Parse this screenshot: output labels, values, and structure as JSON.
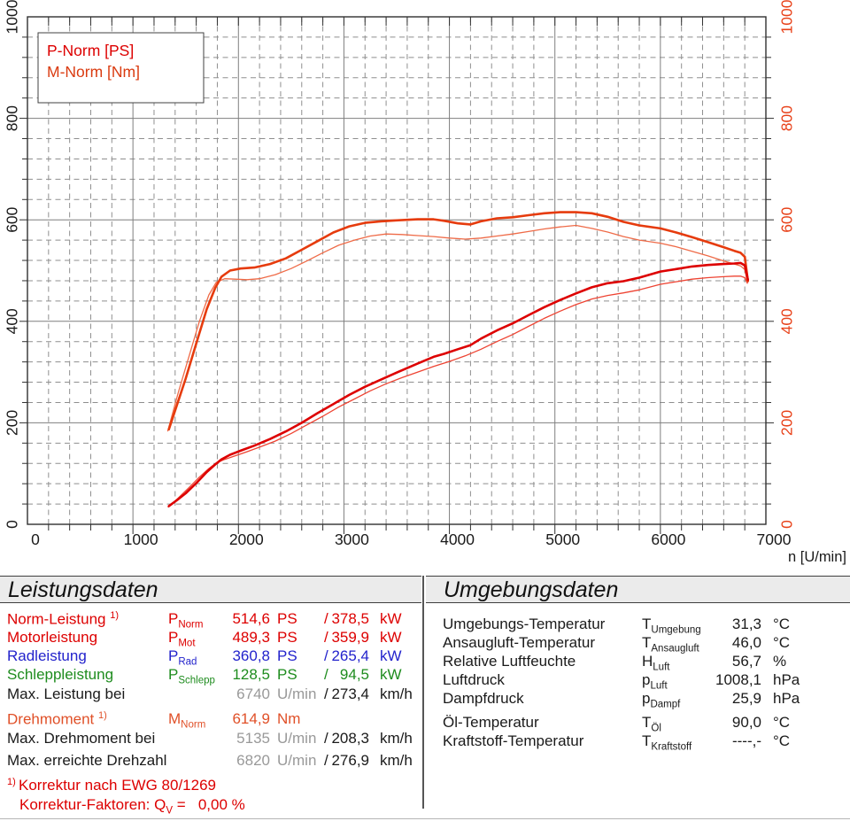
{
  "chart_data": {
    "type": "line",
    "title": "",
    "xlabel": "n [U/min]",
    "ylabel_left": "",
    "x_range": [
      0,
      7000
    ],
    "y_range": [
      0,
      1000
    ],
    "x_major_step": 1000,
    "x_minor_step": 200,
    "y_major_step": 200,
    "y_minor_step": 40,
    "x_ticks": [
      0,
      1000,
      2000,
      3000,
      4000,
      5000,
      6000,
      7000
    ],
    "y_ticks": [
      0,
      200,
      400,
      600,
      800,
      1000
    ],
    "grid": true,
    "legend_position": "top-left",
    "legend": [
      {
        "label": "P-Norm [PS]",
        "color": "#dd0000"
      },
      {
        "label": "M-Norm [Nm]",
        "color": "#da3b10"
      }
    ],
    "axis_colors": {
      "left": "#1a1a1a",
      "bottom": "#1a1a1a",
      "right": "#e8421a"
    },
    "grid_colors": {
      "major": "#7f7f7f",
      "minor": "#8f8f8f",
      "frame": "#303030"
    },
    "series": [
      {
        "name": "M-Mot [Nm]",
        "color": "#ef6b48",
        "width": 1.3,
        "points": [
          [
            1330,
            184
          ],
          [
            1430,
            260
          ],
          [
            1530,
            330
          ],
          [
            1630,
            400
          ],
          [
            1720,
            452
          ],
          [
            1790,
            477
          ],
          [
            1870,
            484
          ],
          [
            1970,
            483
          ],
          [
            2080,
            482
          ],
          [
            2200,
            484
          ],
          [
            2350,
            492
          ],
          [
            2500,
            504
          ],
          [
            2650,
            519
          ],
          [
            2800,
            535
          ],
          [
            2950,
            550
          ],
          [
            3100,
            560
          ],
          [
            3250,
            568
          ],
          [
            3400,
            572
          ],
          [
            3550,
            571
          ],
          [
            3700,
            569
          ],
          [
            3850,
            567
          ],
          [
            4000,
            564
          ],
          [
            4150,
            562
          ],
          [
            4300,
            564
          ],
          [
            4450,
            568
          ],
          [
            4600,
            572
          ],
          [
            4750,
            577
          ],
          [
            4900,
            582
          ],
          [
            5050,
            586
          ],
          [
            5200,
            589
          ],
          [
            5350,
            583
          ],
          [
            5500,
            576
          ],
          [
            5650,
            567
          ],
          [
            5800,
            560
          ],
          [
            6000,
            554
          ],
          [
            6150,
            547
          ],
          [
            6300,
            538
          ],
          [
            6450,
            529
          ],
          [
            6600,
            519
          ],
          [
            6700,
            513
          ],
          [
            6760,
            509
          ],
          [
            6800,
            502
          ],
          [
            6825,
            477
          ]
        ]
      },
      {
        "name": "P-Mot [PS]",
        "color": "#ee4433",
        "width": 1.3,
        "points": [
          [
            1335,
            34
          ],
          [
            1430,
            52
          ],
          [
            1530,
            72
          ],
          [
            1630,
            93
          ],
          [
            1720,
            110
          ],
          [
            1790,
            121
          ],
          [
            1870,
            128
          ],
          [
            1970,
            135
          ],
          [
            2080,
            143
          ],
          [
            2200,
            152
          ],
          [
            2350,
            164
          ],
          [
            2500,
            179
          ],
          [
            2650,
            196
          ],
          [
            2800,
            213
          ],
          [
            2950,
            231
          ],
          [
            3100,
            247
          ],
          [
            3250,
            263
          ],
          [
            3400,
            277
          ],
          [
            3550,
            289
          ],
          [
            3700,
            300
          ],
          [
            3850,
            311
          ],
          [
            4000,
            321
          ],
          [
            4150,
            332
          ],
          [
            4300,
            345
          ],
          [
            4450,
            360
          ],
          [
            4600,
            374
          ],
          [
            4750,
            390
          ],
          [
            4900,
            406
          ],
          [
            5050,
            420
          ],
          [
            5200,
            433
          ],
          [
            5350,
            444
          ],
          [
            5500,
            451
          ],
          [
            5650,
            456
          ],
          [
            5800,
            462
          ],
          [
            6000,
            473
          ],
          [
            6150,
            478
          ],
          [
            6300,
            483
          ],
          [
            6450,
            486
          ],
          [
            6600,
            488
          ],
          [
            6700,
            489
          ],
          [
            6760,
            489
          ],
          [
            6800,
            486
          ],
          [
            6825,
            475
          ]
        ]
      },
      {
        "name": "M-Norm [Nm]",
        "color": "#e63b0d",
        "width": 2.6,
        "points": [
          [
            1340,
            187
          ],
          [
            1420,
            237
          ],
          [
            1500,
            287
          ],
          [
            1600,
            356
          ],
          [
            1700,
            424
          ],
          [
            1780,
            466
          ],
          [
            1840,
            488
          ],
          [
            1920,
            500
          ],
          [
            2020,
            504
          ],
          [
            2150,
            506
          ],
          [
            2300,
            513
          ],
          [
            2450,
            524
          ],
          [
            2600,
            541
          ],
          [
            2750,
            558
          ],
          [
            2900,
            575
          ],
          [
            3050,
            587
          ],
          [
            3200,
            594
          ],
          [
            3350,
            597
          ],
          [
            3500,
            599
          ],
          [
            3700,
            601
          ],
          [
            3850,
            601
          ],
          [
            3950,
            598
          ],
          [
            4080,
            593
          ],
          [
            4200,
            591
          ],
          [
            4300,
            597
          ],
          [
            4450,
            603
          ],
          [
            4600,
            605
          ],
          [
            4750,
            609
          ],
          [
            4900,
            613
          ],
          [
            5050,
            615
          ],
          [
            5200,
            615
          ],
          [
            5350,
            613
          ],
          [
            5500,
            606
          ],
          [
            5650,
            596
          ],
          [
            5800,
            589
          ],
          [
            6000,
            583
          ],
          [
            6150,
            575
          ],
          [
            6300,
            566
          ],
          [
            6450,
            556
          ],
          [
            6600,
            546
          ],
          [
            6700,
            539
          ],
          [
            6760,
            535
          ],
          [
            6800,
            527
          ],
          [
            6830,
            479
          ]
        ]
      },
      {
        "name": "P-Norm [PS]",
        "color": "#dd0000",
        "width": 2.6,
        "points": [
          [
            1340,
            36
          ],
          [
            1420,
            48
          ],
          [
            1500,
            61
          ],
          [
            1600,
            81
          ],
          [
            1700,
            103
          ],
          [
            1780,
            118
          ],
          [
            1840,
            128
          ],
          [
            1920,
            137
          ],
          [
            2020,
            145
          ],
          [
            2150,
            155
          ],
          [
            2300,
            168
          ],
          [
            2450,
            183
          ],
          [
            2600,
            200
          ],
          [
            2750,
            219
          ],
          [
            2900,
            237
          ],
          [
            3050,
            255
          ],
          [
            3200,
            271
          ],
          [
            3350,
            285
          ],
          [
            3500,
            299
          ],
          [
            3700,
            317
          ],
          [
            3850,
            330
          ],
          [
            3950,
            336
          ],
          [
            4080,
            345
          ],
          [
            4200,
            353
          ],
          [
            4300,
            366
          ],
          [
            4450,
            382
          ],
          [
            4600,
            396
          ],
          [
            4750,
            412
          ],
          [
            4900,
            428
          ],
          [
            5050,
            442
          ],
          [
            5200,
            455
          ],
          [
            5350,
            467
          ],
          [
            5500,
            475
          ],
          [
            5650,
            479
          ],
          [
            5800,
            486
          ],
          [
            6000,
            498
          ],
          [
            6150,
            503
          ],
          [
            6300,
            508
          ],
          [
            6450,
            511
          ],
          [
            6600,
            513
          ],
          [
            6700,
            514
          ],
          [
            6760,
            515
          ],
          [
            6800,
            510
          ],
          [
            6830,
            482
          ]
        ]
      }
    ]
  },
  "left_panel": {
    "title": "Leistungsdaten",
    "rows": [
      {
        "label": "Norm-Leistung",
        "sup": "1)",
        "sym": "P",
        "sub": "Norm",
        "v1": "514,6",
        "u1": "PS",
        "slash": "/",
        "v2": "378,5",
        "u2": "kW",
        "color": "#dd0000",
        "v1_gray": false
      },
      {
        "label": "Motorleistung",
        "sym": "P",
        "sub": "Mot",
        "v1": "489,3",
        "u1": "PS",
        "slash": "/",
        "v2": "359,9",
        "u2": "kW",
        "color": "#dd0000",
        "v1_gray": false
      },
      {
        "label": "Radleistung",
        "sym": "P",
        "sub": "Rad",
        "v1": "360,8",
        "u1": "PS",
        "slash": "/",
        "v2": "265,4",
        "u2": "kW",
        "color": "#2323cc",
        "v1_gray": false
      },
      {
        "label": "Schleppleistung",
        "sym": "P",
        "sub": "Schlepp",
        "v1": "128,5",
        "u1": "PS",
        "slash": "/",
        "v2": "94,5",
        "u2": "kW",
        "color": "#1e8c1e",
        "v1_gray": false
      },
      {
        "label": "Max. Leistung bei",
        "v1": "6740",
        "u1": "U/min",
        "slash": "/",
        "v2": "273,4",
        "u2": "km/h",
        "color": "#1a1a1a",
        "v1_gray": true
      },
      {
        "label": "Drehmoment",
        "sup": "1)",
        "sym": "M",
        "sub": "Norm",
        "v1": "614,9",
        "u1": "Nm",
        "color": "#e05028",
        "v1_gray": false
      },
      {
        "label": "Max. Drehmoment bei",
        "v1": "5135",
        "u1": "U/min",
        "slash": "/",
        "v2": "208,3",
        "u2": "km/h",
        "color": "#1a1a1a",
        "v1_gray": true
      },
      {
        "label": "Max. erreichte Drehzahl",
        "v1": "6820",
        "u1": "U/min",
        "slash": "/",
        "v2": "276,9",
        "u2": "km/h",
        "color": "#1a1a1a",
        "v1_gray": true
      }
    ],
    "footnote": {
      "marker": "1)",
      "line1": "Korrektur nach EWG 80/1269",
      "line2_prefix": "Korrektur-Faktoren: Q",
      "line2_sub": "V",
      "line2_rest": " =   0,00 %",
      "color": "#dd0000"
    },
    "gray_value_color": "#999999"
  },
  "right_panel": {
    "title": "Umgebungsdaten",
    "rows": [
      {
        "label": "Umgebungs-Temperatur",
        "sym": "T",
        "sub": "Umgebung",
        "v": "31,3",
        "u": "°C"
      },
      {
        "label": "Ansaugluft-Temperatur",
        "sym": "T",
        "sub": "Ansaugluft",
        "v": "46,0",
        "u": "°C"
      },
      {
        "label": "Relative Luftfeuchte",
        "sym": "H",
        "sub": "Luft",
        "v": "56,7",
        "u": "%"
      },
      {
        "label": "Luftdruck",
        "sym": "p",
        "sub": "Luft",
        "v": "1008,1",
        "u": "hPa"
      },
      {
        "label": "Dampfdruck",
        "sym": "p",
        "sub": "Dampf",
        "v": "25,9",
        "u": "hPa"
      },
      {
        "label": "Öl-Temperatur",
        "sym": "T",
        "sub": "Öl",
        "v": "90,0",
        "u": "°C"
      },
      {
        "label": "Kraftstoff-Temperatur",
        "sym": "T",
        "sub": "Kraftstoff",
        "v": "----,-",
        "u": "°C"
      }
    ],
    "text_color": "#1a1a1a"
  }
}
